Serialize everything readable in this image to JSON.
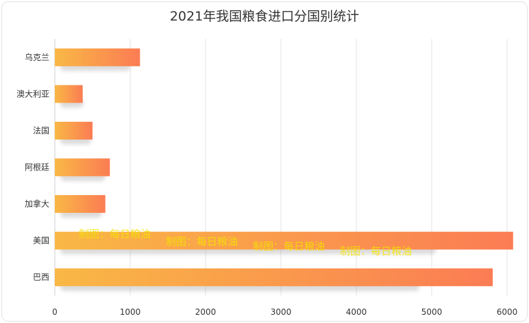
{
  "chart_data": {
    "type": "bar",
    "orientation": "horizontal",
    "title": "2021年我国粮食进口分国别统计",
    "categories": [
      "乌克兰",
      "澳大利亚",
      "法国",
      "阿根廷",
      "加拿大",
      "美国",
      "巴西"
    ],
    "values": [
      1130,
      370,
      500,
      730,
      670,
      6080,
      5810
    ],
    "xlim": [
      0,
      6000
    ],
    "xticks": [
      "0",
      "1000",
      "2000",
      "3000",
      "4000",
      "5000",
      "6000"
    ],
    "grid": "vertical",
    "colors": {
      "bar_start": "#f9b845",
      "bar_end": "#fb7c54"
    },
    "watermark": [
      "制图：每日粮油",
      "制图：每日粮油",
      "制图：每日粮油",
      "制图：每日粮油"
    ]
  }
}
